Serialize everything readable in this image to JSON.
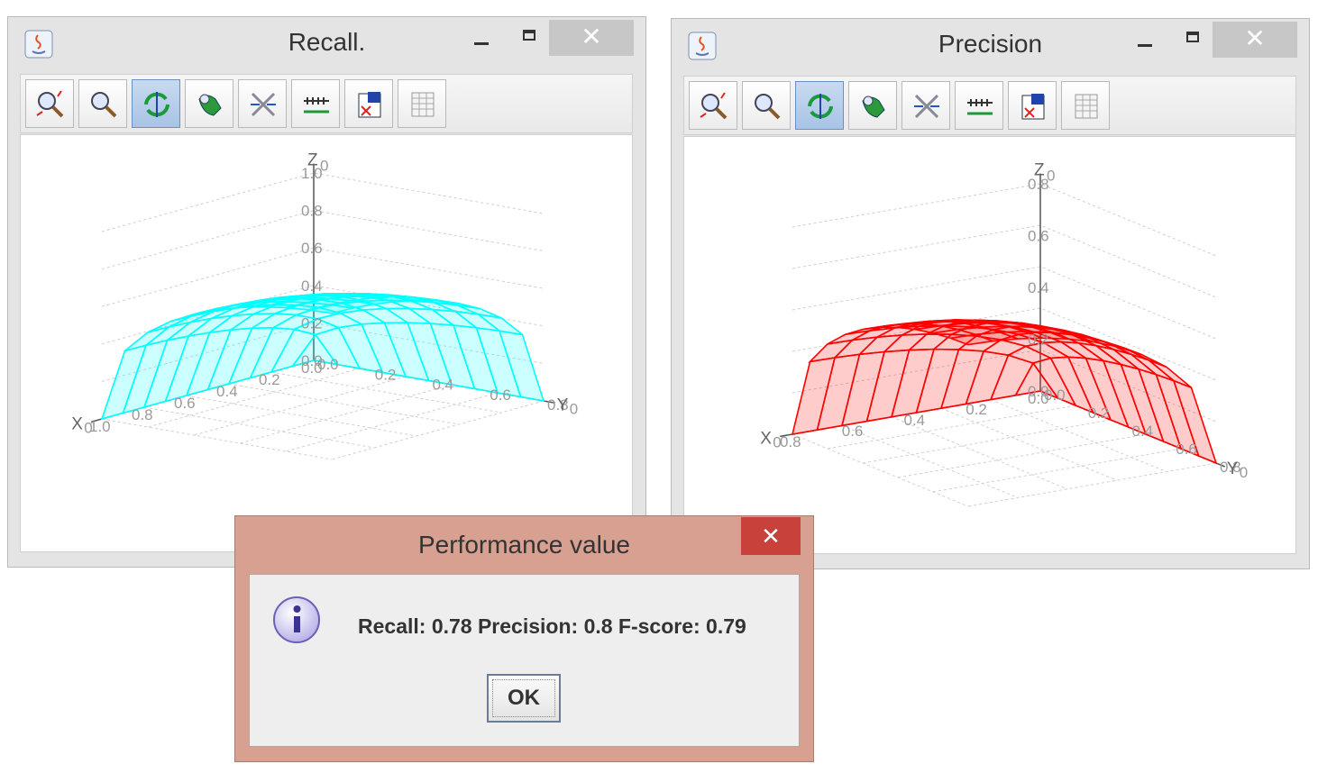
{
  "windows": [
    {
      "title": "Recall.",
      "close_label": "✕",
      "surface_color": "#00ffff",
      "axes": {
        "x": "X",
        "y": "Y",
        "z": "Z",
        "x_sub": "0",
        "y_sub": "0",
        "z_sub": "0"
      },
      "z_ticks": [
        "1.0",
        "0.8",
        "0.6",
        "0.4",
        "0.2",
        "0.0"
      ],
      "x_ticks": [
        "0.0",
        "0.2",
        "0.4",
        "0.6",
        "0.8",
        "1.0"
      ],
      "y_ticks": [
        "0.0",
        "0.2",
        "0.4",
        "0.6",
        "0.8"
      ]
    },
    {
      "title": "Precision",
      "close_label": "✕",
      "surface_color": "#ff0000",
      "axes": {
        "x": "X",
        "y": "Y",
        "z": "Z",
        "x_sub": "0",
        "y_sub": "0",
        "z_sub": "0"
      },
      "z_ticks": [
        "0.8",
        "0.6",
        "0.4",
        "0.2",
        "0.0"
      ],
      "x_ticks": [
        "0.0",
        "0.2",
        "0.4",
        "0.6",
        "0.8"
      ],
      "y_ticks": [
        "0.0",
        "0.2",
        "0.4",
        "0.6",
        "0.8"
      ]
    }
  ],
  "toolbar_icons": [
    "zoom-region-icon",
    "zoom-icon",
    "rotate-icon",
    "pan-icon",
    "axis-settings-icon",
    "axis-scale-icon",
    "export-icon",
    "data-table-icon"
  ],
  "dialog": {
    "title": "Performance value",
    "close_label": "✕",
    "message": "Recall: 0.78 Precision: 0.8 F-score: 0.79",
    "ok_label": "OK"
  }
}
